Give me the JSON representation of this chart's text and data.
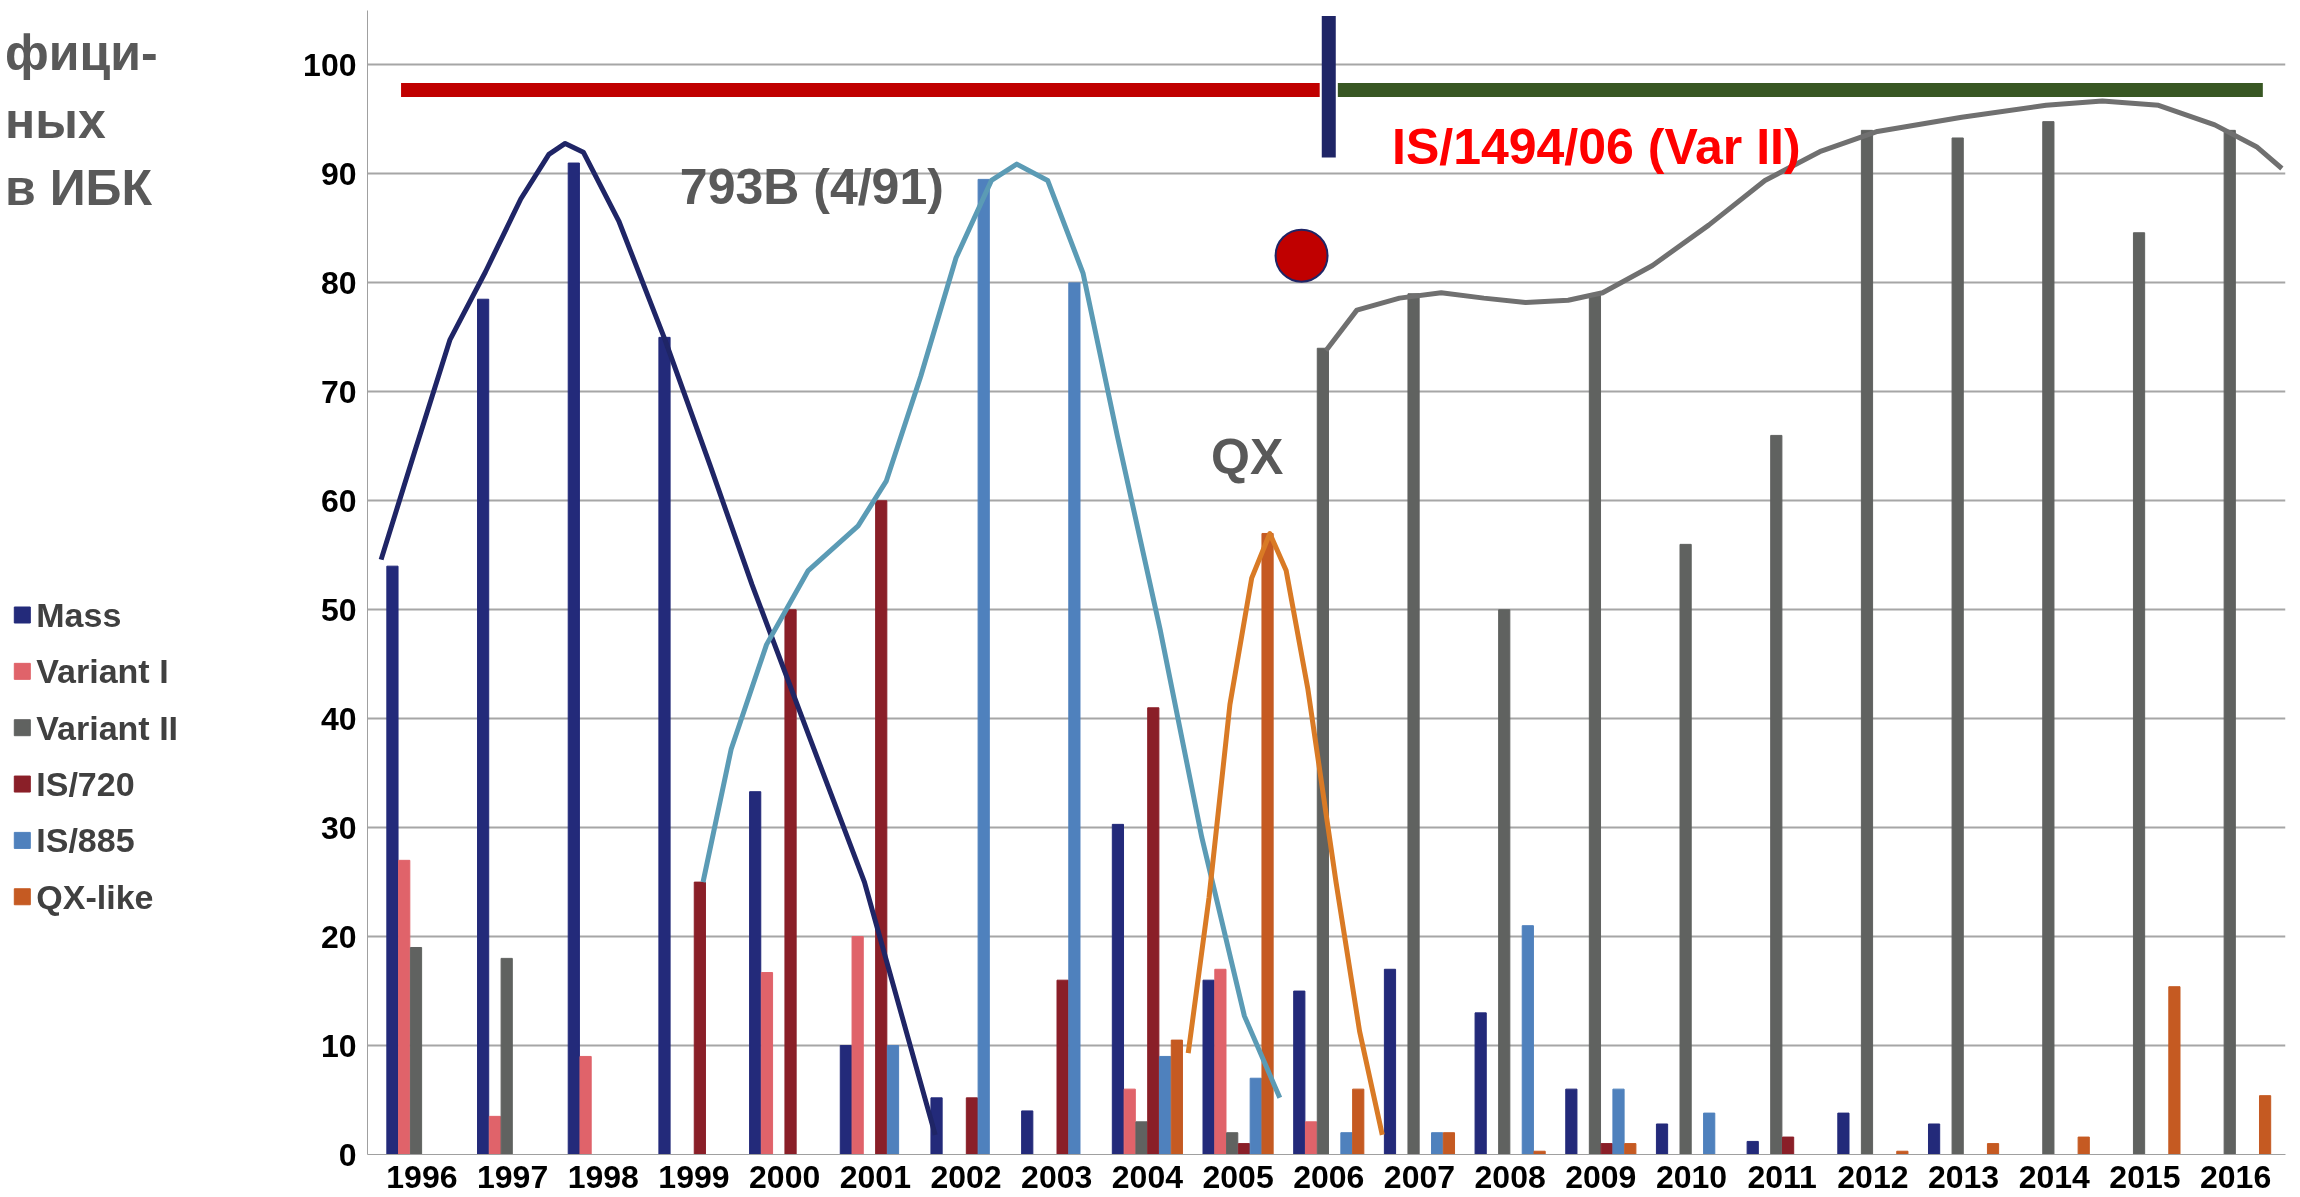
{
  "chart_data": {
    "type": "bar",
    "title": "фици-\nных\nв ИБК",
    "x": [
      1996,
      1997,
      1998,
      1999,
      2000,
      2001,
      2002,
      2003,
      2004,
      2005,
      2006,
      2007,
      2008,
      2009,
      2010,
      2011,
      2012,
      2013,
      2014,
      2015,
      2016
    ],
    "series": [
      {
        "name": "Mass",
        "color": "#232a7a",
        "values": [
          54,
          78.5,
          91,
          75,
          33.3,
          10,
          5.2,
          4,
          30.3,
          16,
          15,
          17,
          13,
          6,
          2.8,
          1.2,
          3.8,
          2.8,
          null,
          null,
          null
        ]
      },
      {
        "name": "Variant I",
        "color": "#e0636a",
        "values": [
          27,
          3.5,
          9,
          null,
          16.7,
          20,
          null,
          null,
          6,
          17,
          3,
          null,
          null,
          null,
          null,
          null,
          null,
          null,
          null,
          null,
          null
        ]
      },
      {
        "name": "Variant II",
        "color": "#606260",
        "values": [
          19,
          18,
          null,
          null,
          null,
          null,
          null,
          null,
          3,
          2,
          74,
          79,
          50,
          79,
          56,
          66,
          94,
          93.3,
          94.8,
          84.6,
          94
        ]
      },
      {
        "name": "IS/720",
        "color": "#8a1f28",
        "values": [
          null,
          null,
          null,
          25,
          50,
          60,
          5.2,
          16,
          41,
          1,
          null,
          null,
          null,
          1,
          null,
          1.6,
          null,
          null,
          null,
          null,
          null
        ]
      },
      {
        "name": "IS/885",
        "color": "#4f81bd",
        "values": [
          null,
          null,
          null,
          null,
          null,
          10,
          89.5,
          80,
          9,
          7,
          2,
          2,
          21,
          6,
          3.8,
          null,
          null,
          null,
          null,
          null,
          null
        ]
      },
      {
        "name": "QX-like",
        "color": "#c55a22",
        "values": [
          null,
          null,
          null,
          null,
          null,
          null,
          null,
          null,
          10.5,
          57,
          6,
          2,
          0.3,
          1,
          null,
          null,
          0.3,
          1,
          1.6,
          15.4,
          5.4
        ]
      },
      {
        "type": "line",
        "color": "#1f2566",
        "x": [
          1995.55,
          1995.92,
          1996.31,
          1996.7,
          1997.09,
          1997.4,
          1997.58,
          1997.78,
          1998.17,
          1998.68,
          1999.18,
          1999.64,
          2000.26,
          2000.88,
          2001.66
        ],
        "values": [
          54.6,
          64.5,
          74.8,
          81,
          87.7,
          91.8,
          92.8,
          92,
          85.7,
          74.8,
          63.2,
          52.3,
          38.6,
          25,
          1.8
        ]
      },
      {
        "type": "line",
        "color": "#5b9bb5",
        "x": [
          1999.1,
          1999.41,
          1999.8,
          2000.26,
          2000.81,
          2001.12,
          2001.5,
          2001.89,
          2002.28,
          2002.56,
          2002.9,
          2003.29,
          2003.67,
          2004.14,
          2004.6,
          2005.07,
          2005.46
        ],
        "values": [
          25,
          37.2,
          46.8,
          53.6,
          57.7,
          61.8,
          71.4,
          82.3,
          89.4,
          90.9,
          89.4,
          80.9,
          65.9,
          48.2,
          29.1,
          12.7,
          5.2
        ]
      },
      {
        "type": "line",
        "color": "#d97a25",
        "x": [
          2004.45,
          2004.68,
          2004.91,
          2005.15,
          2005.35,
          2005.53,
          2005.77,
          2006.08,
          2006.34,
          2006.59
        ],
        "values": [
          9.3,
          23.6,
          41.3,
          52.9,
          57,
          53.6,
          42.7,
          25,
          11.3,
          1.8
        ]
      },
      {
        "type": "line",
        "color": "#707070",
        "x": [
          2005.97,
          2006.31,
          2006.78,
          2007.24,
          2007.71,
          2008.17,
          2008.64,
          2009.02,
          2009.57,
          2010.19,
          2010.81,
          2011.43,
          2012.05,
          2012.98,
          2013.91,
          2014.53,
          2015.15,
          2015.77,
          2016.23,
          2016.51
        ],
        "values": [
          73.8,
          77.5,
          78.6,
          79.1,
          78.6,
          78.2,
          78.4,
          79.1,
          81.6,
          85.3,
          89.4,
          92.1,
          93.9,
          95.2,
          96.3,
          96.7,
          96.3,
          94.5,
          92.5,
          90.5
        ]
      },
      {
        "type": "line",
        "color": "#c00000",
        "x": [
          1995.77,
          2005.9
        ],
        "values": [
          97.7,
          97.7
        ]
      },
      {
        "type": "line",
        "color": "#385723",
        "x": [
          2006.1,
          2016.3
        ],
        "values": [
          97.7,
          97.7
        ]
      },
      {
        "type": "line",
        "color": "#1f2566",
        "x": [
          2006.0,
          2006.0
        ],
        "values": [
          91.5,
          104.5
        ]
      },
      {
        "type": "scatter",
        "color": "#c00000",
        "x": [
          2005.7
        ],
        "values": [
          82.5
        ]
      }
    ],
    "annotations": [
      "793B (4/91)",
      "QX",
      "IS/1494/06 (Var II)"
    ],
    "xlim": [
      1995.4,
      2016.55
    ],
    "ylim": [
      0,
      105
    ],
    "xticks": [
      1996,
      1997,
      1998,
      1999,
      2000,
      2001,
      2002,
      2003,
      2004,
      2005,
      2006,
      2007,
      2008,
      2009,
      2010,
      2011,
      2012,
      2013,
      2014,
      2015,
      2016
    ],
    "yticks": [
      0,
      10,
      20,
      30,
      40,
      50,
      60,
      70,
      80,
      90,
      100
    ],
    "grid": "y",
    "legend": "left"
  }
}
